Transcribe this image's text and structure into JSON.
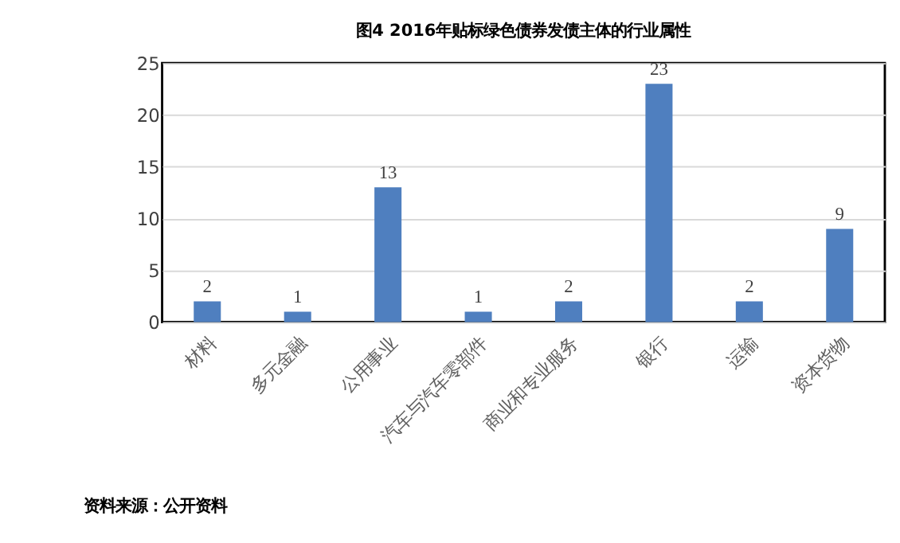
{
  "chart_data": {
    "type": "bar",
    "title": "图4  2016年贴标绿色债券发债主体的行业属性",
    "categories": [
      "材料",
      "多元金融",
      "公用事业",
      "汽车与汽车零部件",
      "商业和专业服务",
      "银行",
      "运输",
      "资本货物"
    ],
    "values": [
      2,
      1,
      13,
      1,
      2,
      23,
      2,
      9
    ],
    "color": "#4f7fbf",
    "ylim": [
      0,
      25
    ],
    "yticks": [
      0,
      5,
      10,
      15,
      20,
      25
    ],
    "grid": "y",
    "data_labels": true,
    "annotations": [
      "资料来源：公开资料"
    ]
  }
}
